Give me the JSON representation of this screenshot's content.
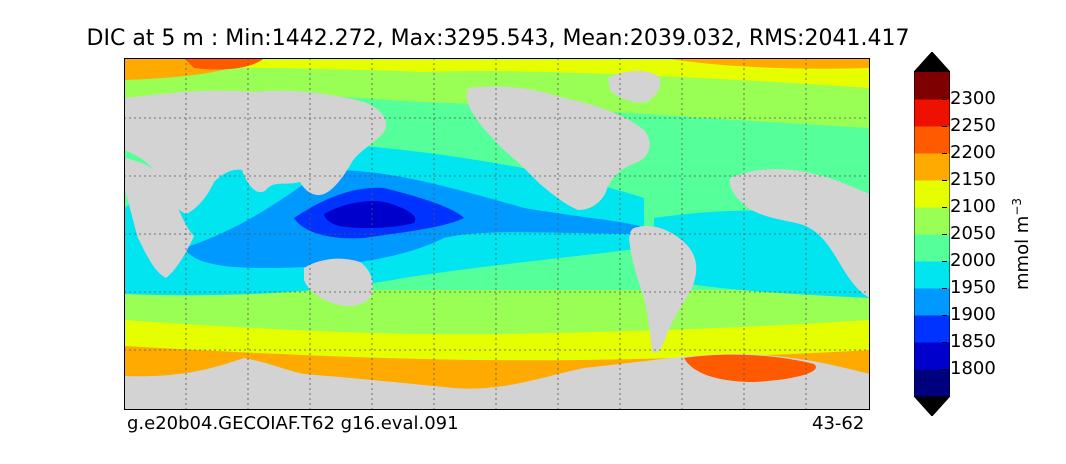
{
  "title": "DIC at 5 m : Min:1442.272, Max:3295.543, Mean:2039.032, RMS:2041.417",
  "footer_left": "g.e20b04.GECOIAF.T62 g16.eval.091",
  "footer_right": "43-62",
  "colorbar": {
    "unit_base": "mmol m",
    "unit_exponent": "−3",
    "levels": [
      {
        "label": "",
        "color": "#00007f"
      },
      {
        "label": "1800",
        "color": "#0000cc"
      },
      {
        "label": "1850",
        "color": "#0033ff"
      },
      {
        "label": "1900",
        "color": "#0099ff"
      },
      {
        "label": "1950",
        "color": "#00e5f0"
      },
      {
        "label": "2000",
        "color": "#55ff99"
      },
      {
        "label": "2050",
        "color": "#99ff55"
      },
      {
        "label": "2100",
        "color": "#e5ff00"
      },
      {
        "label": "2150",
        "color": "#ffaa00"
      },
      {
        "label": "2200",
        "color": "#ff5a00"
      },
      {
        "label": "2250",
        "color": "#ee1100"
      },
      {
        "label": "2300",
        "color": "#7f0000"
      }
    ],
    "extend": "both"
  },
  "land_color": "#d3d3d3"
}
